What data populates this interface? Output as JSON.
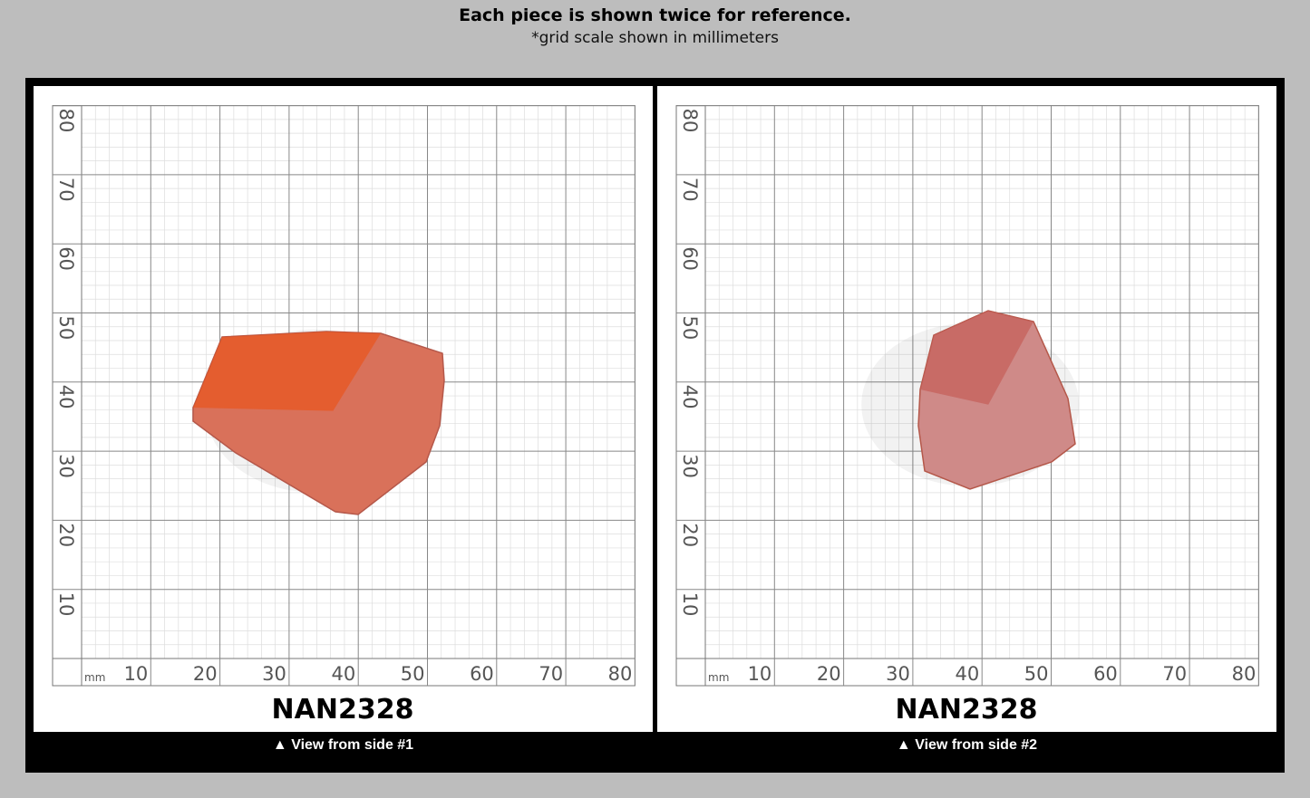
{
  "header": {
    "title": "Each piece is shown twice for reference.",
    "subtitle": "*grid scale shown in millimeters"
  },
  "grid": {
    "unit": "mm",
    "x_ticks": [
      10,
      20,
      30,
      40,
      50,
      60,
      70,
      80
    ],
    "y_ticks": [
      10,
      20,
      30,
      40,
      50,
      60,
      70,
      80
    ]
  },
  "panels": [
    {
      "label": "NAN2328",
      "caption": "▲ View from side #1"
    },
    {
      "label": "NAN2328",
      "caption": "▲ View from side #2"
    }
  ]
}
